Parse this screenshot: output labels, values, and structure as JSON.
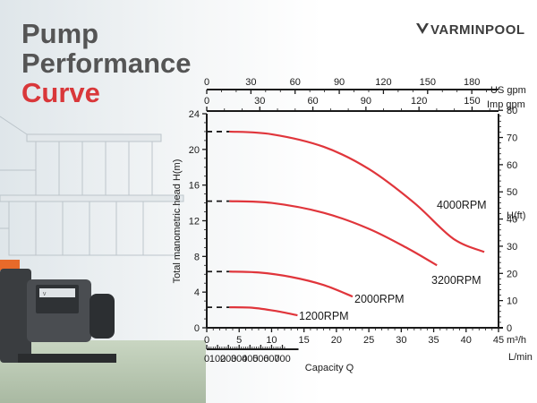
{
  "title": {
    "line1": "Pump",
    "line2": "Performance",
    "line3": "Curve"
  },
  "brand": {
    "name": "VARMINPOOL",
    "logo_icon": "v-mark-icon"
  },
  "colors": {
    "accent_red": "#d9373a",
    "title_gray": "#555555",
    "curve_red": "#e0353b",
    "axis": "#1a1a1a"
  },
  "chart_data": {
    "type": "line",
    "title": "",
    "xlabel": "Capacity Q",
    "ylabel_left": "Total manometric head H(m)",
    "ylabel_right": "H(ft)",
    "x_unit": "m³/h",
    "x_lmin_unit": "L/min",
    "x_usgpm_unit": "US gpm",
    "x_impgpm_unit": "Imp gpm",
    "xlim": [
      0,
      45
    ],
    "ylim": [
      0,
      24
    ],
    "x_ticks": [
      0,
      5,
      10,
      15,
      20,
      25,
      30,
      35,
      40,
      45
    ],
    "y_ticks": [
      0,
      4,
      8,
      12,
      16,
      20,
      24
    ],
    "lmin_ticks": [
      0,
      100,
      200,
      300,
      400,
      500,
      600,
      700
    ],
    "usgpm_ticks": [
      0,
      30,
      60,
      90,
      120,
      150,
      180
    ],
    "impgpm_ticks": [
      0,
      30,
      60,
      90,
      120,
      150
    ],
    "ft_ticks": [
      0,
      10,
      20,
      30,
      40,
      50,
      60,
      70,
      80
    ],
    "series": [
      {
        "name": "4000RPM",
        "shutoff_head": 22,
        "points": [
          [
            3.5,
            22.0
          ],
          [
            10,
            21.7
          ],
          [
            18,
            20.3
          ],
          [
            25,
            17.8
          ],
          [
            32,
            14.0
          ],
          [
            38,
            10.0
          ],
          [
            42.8,
            8.5
          ]
        ]
      },
      {
        "name": "3200RPM",
        "shutoff_head": 14.2,
        "points": [
          [
            3.5,
            14.2
          ],
          [
            10,
            14.0
          ],
          [
            18,
            12.9
          ],
          [
            25,
            11.1
          ],
          [
            31,
            8.9
          ],
          [
            35.5,
            7.0
          ]
        ]
      },
      {
        "name": "2000RPM",
        "shutoff_head": 6.3,
        "points": [
          [
            3.5,
            6.3
          ],
          [
            8,
            6.2
          ],
          [
            13,
            5.7
          ],
          [
            18,
            4.8
          ],
          [
            22.5,
            3.5
          ]
        ]
      },
      {
        "name": "1200RPM",
        "shutoff_head": 2.3,
        "points": [
          [
            3.5,
            2.3
          ],
          [
            7,
            2.25
          ],
          [
            10.5,
            1.9
          ],
          [
            14,
            1.4
          ]
        ]
      }
    ]
  }
}
